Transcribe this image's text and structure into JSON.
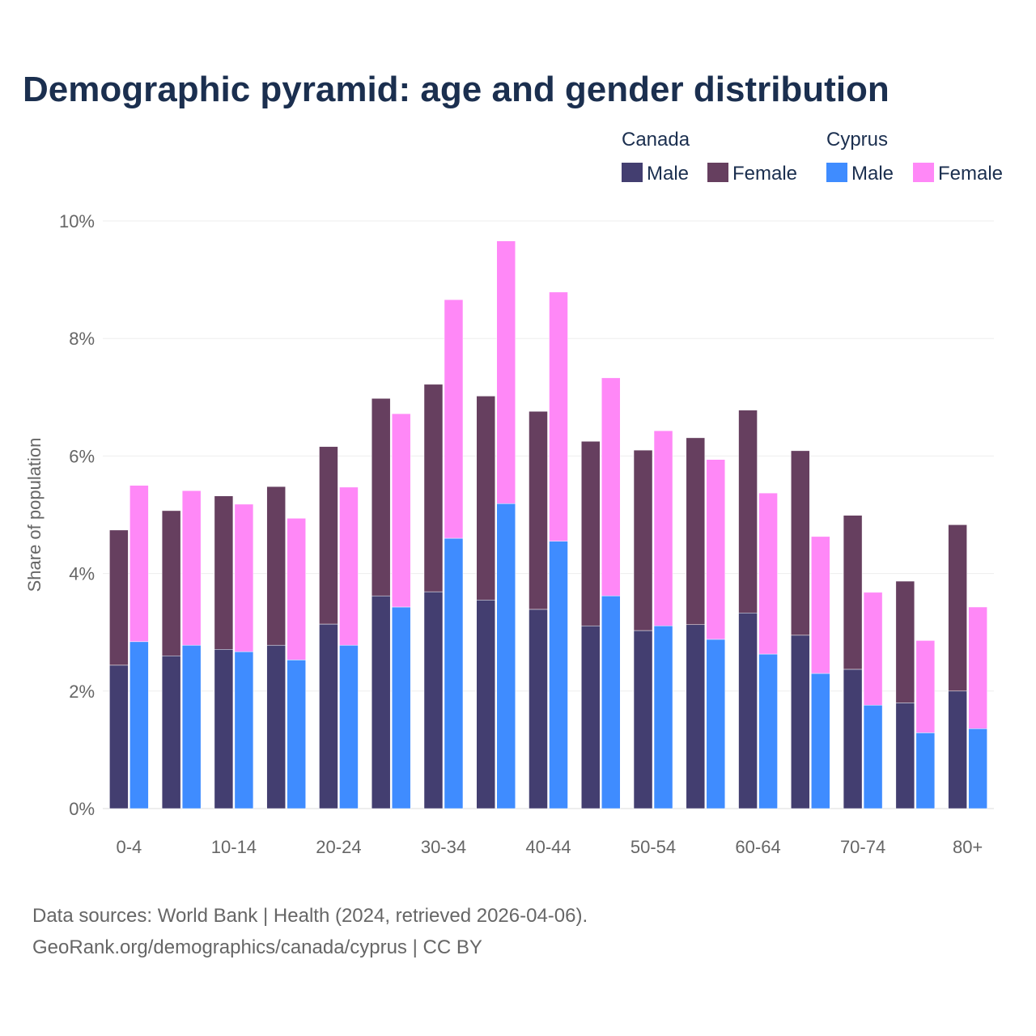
{
  "chart_data": {
    "type": "bar",
    "stacked": true,
    "title": "Demographic pyramid: age and gender distribution",
    "ylabel": "Share of population",
    "xlabel": "",
    "ylim": [
      0,
      10
    ],
    "y_ticks": [
      0,
      2,
      4,
      6,
      8,
      10
    ],
    "y_tick_labels": [
      "0%",
      "2%",
      "4%",
      "6%",
      "8%",
      "10%"
    ],
    "x_tick_labels": [
      "0-4",
      "10-14",
      "20-24",
      "30-34",
      "40-44",
      "50-54",
      "60-64",
      "70-74",
      "80+"
    ],
    "group_count": 17,
    "grid": true,
    "legend_placement": "top-right",
    "countries": [
      {
        "name": "Canada",
        "male_label": "Male",
        "female_label": "Female",
        "male_color": "#433e70",
        "female_color": "#663f5f",
        "male": [
          2.44,
          2.6,
          2.71,
          2.78,
          3.14,
          3.62,
          3.69,
          3.55,
          3.39,
          3.11,
          3.03,
          3.13,
          3.33,
          2.95,
          2.37,
          1.8,
          2.0
        ],
        "female": [
          2.3,
          2.47,
          2.61,
          2.7,
          3.02,
          3.36,
          3.53,
          3.47,
          3.37,
          3.14,
          3.07,
          3.18,
          3.45,
          3.14,
          2.62,
          2.07,
          2.83
        ]
      },
      {
        "name": "Cyprus",
        "male_label": "Male",
        "female_label": "Female",
        "male_color": "#3f8cff",
        "female_color": "#ff88f7",
        "male": [
          2.84,
          2.78,
          2.67,
          2.53,
          2.78,
          3.43,
          4.6,
          5.19,
          4.55,
          3.62,
          3.11,
          2.88,
          2.63,
          2.3,
          1.76,
          1.29,
          1.36
        ],
        "female": [
          2.66,
          2.63,
          2.51,
          2.41,
          2.69,
          3.29,
          4.06,
          4.47,
          4.24,
          3.71,
          3.32,
          3.06,
          2.74,
          2.33,
          1.92,
          1.57,
          2.07
        ]
      }
    ]
  },
  "footer": {
    "source_line": "Data sources: World Bank | Health (2024, retrieved 2026-04-06).",
    "credit_line": "GeoRank.org/demographics/canada/cyprus | CC BY"
  }
}
